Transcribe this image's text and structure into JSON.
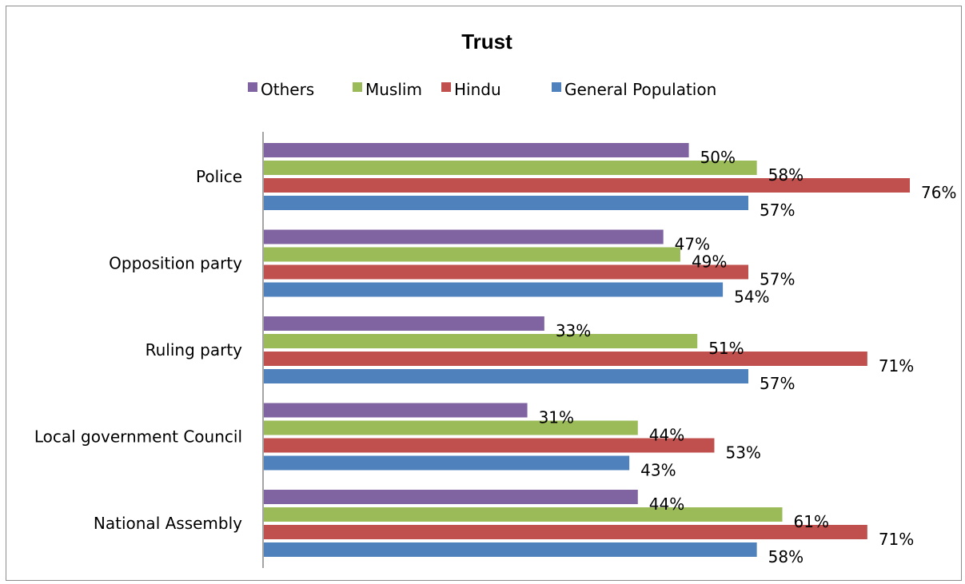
{
  "chart_data": {
    "type": "bar",
    "orientation": "horizontal",
    "title": "Trust",
    "categories": [
      "Police",
      "Opposition party",
      "Ruling party",
      "Local government Council",
      "National Assembly"
    ],
    "series": [
      {
        "name": "Others",
        "color": "#8064A2",
        "values": [
          50,
          47,
          33,
          31,
          44
        ],
        "labels": [
          "50%",
          "47%",
          "33%",
          "31%",
          "44%"
        ]
      },
      {
        "name": "Muslim",
        "color": "#9BBB59",
        "values": [
          58,
          49,
          51,
          44,
          61
        ],
        "labels": [
          "58%",
          "49%",
          "51%",
          "44%",
          "61%"
        ]
      },
      {
        "name": "Hindu",
        "color": "#C0504D",
        "values": [
          76,
          57,
          71,
          53,
          71
        ],
        "labels": [
          "76%",
          "57%",
          "71%",
          "53%",
          "71%"
        ]
      },
      {
        "name": "General Population",
        "color": "#4F81BD",
        "values": [
          57,
          54,
          57,
          43,
          58
        ],
        "labels": [
          "57%",
          "54%",
          "57%",
          "43%",
          "58%"
        ]
      }
    ],
    "legend_order": [
      "Others",
      "Muslim",
      "Hindu",
      "General Population"
    ],
    "legend_position": "top",
    "value_unit": "%",
    "xlim": [
      0,
      76
    ],
    "grid": false
  }
}
